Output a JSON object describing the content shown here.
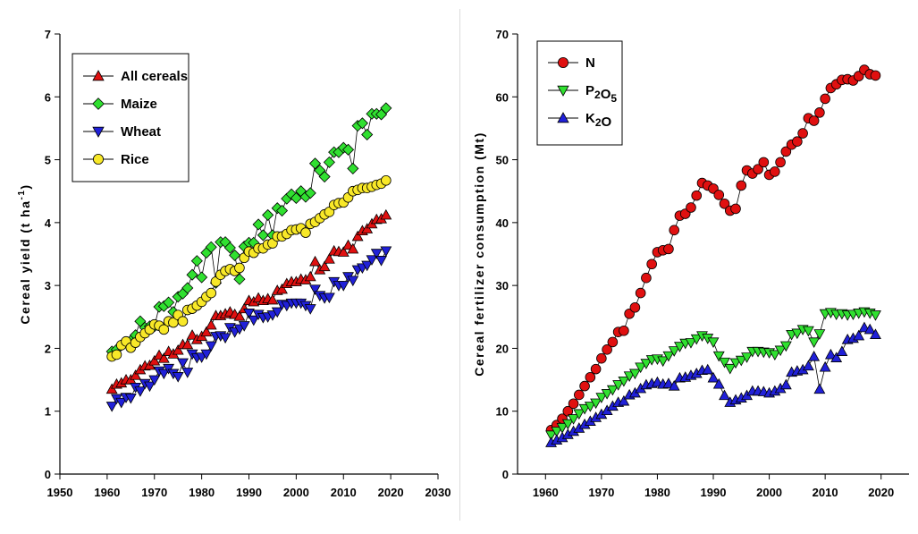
{
  "chart_data": [
    {
      "type": "line",
      "ylabel": "Cereal yield (t ha",
      "ylabel_sup": "-1",
      "ylabel_end": ")",
      "xlim": [
        1950,
        2030
      ],
      "ylim": [
        0,
        7
      ],
      "xticks": [
        1950,
        1960,
        1970,
        1980,
        1990,
        2000,
        2010,
        2020,
        2030
      ],
      "yticks": [
        0,
        1,
        2,
        3,
        4,
        5,
        6,
        7
      ],
      "grid": false,
      "legend_position": "top-left",
      "years": [
        1961,
        1962,
        1963,
        1964,
        1965,
        1966,
        1967,
        1968,
        1969,
        1970,
        1971,
        1972,
        1973,
        1974,
        1975,
        1976,
        1977,
        1978,
        1979,
        1980,
        1981,
        1982,
        1983,
        1984,
        1985,
        1986,
        1987,
        1988,
        1989,
        1990,
        1991,
        1992,
        1993,
        1994,
        1995,
        1996,
        1997,
        1998,
        1999,
        2000,
        2001,
        2002,
        2003,
        2004,
        2005,
        2006,
        2007,
        2008,
        2009,
        2010,
        2011,
        2012,
        2013,
        2014,
        2015,
        2016,
        2017,
        2018,
        2019
      ],
      "series": [
        {
          "name": "All cereals",
          "marker": "triangle-up",
          "color": "#e01010",
          "values": [
            1.35,
            1.43,
            1.45,
            1.5,
            1.5,
            1.57,
            1.66,
            1.72,
            1.73,
            1.8,
            1.89,
            1.84,
            1.95,
            1.91,
            1.97,
            2.06,
            2.06,
            2.21,
            2.14,
            2.19,
            2.26,
            2.37,
            2.52,
            2.52,
            2.55,
            2.58,
            2.54,
            2.51,
            2.63,
            2.76,
            2.74,
            2.8,
            2.76,
            2.79,
            2.77,
            2.92,
            2.94,
            3.03,
            3.06,
            3.06,
            3.1,
            3.09,
            3.14,
            3.38,
            3.25,
            3.3,
            3.42,
            3.55,
            3.54,
            3.53,
            3.64,
            3.58,
            3.78,
            3.87,
            3.9,
            3.98,
            4.05,
            4.06,
            4.12
          ]
        },
        {
          "name": "Maize",
          "marker": "diamond",
          "color": "#30e030",
          "values": [
            1.95,
            1.98,
            2.05,
            2.1,
            2.12,
            2.21,
            2.43,
            2.33,
            2.35,
            2.35,
            2.66,
            2.67,
            2.73,
            2.58,
            2.82,
            2.87,
            2.96,
            3.17,
            3.39,
            3.13,
            3.52,
            3.61,
            3.04,
            3.69,
            3.69,
            3.6,
            3.48,
            3.1,
            3.62,
            3.68,
            3.68,
            3.97,
            3.8,
            4.12,
            3.8,
            4.23,
            4.19,
            4.38,
            4.45,
            4.39,
            4.5,
            4.41,
            4.47,
            4.94,
            4.83,
            4.73,
            4.96,
            5.12,
            5.12,
            5.19,
            5.16,
            4.86,
            5.54,
            5.58,
            5.4,
            5.73,
            5.73,
            5.72,
            5.82
          ]
        },
        {
          "name": "Wheat",
          "marker": "triangle-down",
          "color": "#2020d8",
          "values": [
            1.08,
            1.2,
            1.14,
            1.22,
            1.21,
            1.38,
            1.32,
            1.44,
            1.4,
            1.5,
            1.64,
            1.6,
            1.68,
            1.6,
            1.55,
            1.77,
            1.62,
            1.91,
            1.85,
            1.86,
            1.91,
            2.04,
            2.19,
            2.2,
            2.17,
            2.33,
            2.26,
            2.31,
            2.36,
            2.56,
            2.45,
            2.54,
            2.49,
            2.5,
            2.53,
            2.58,
            2.7,
            2.68,
            2.72,
            2.72,
            2.72,
            2.68,
            2.63,
            2.94,
            2.84,
            2.8,
            2.81,
            3.06,
            3.0,
            3.0,
            3.14,
            3.08,
            3.25,
            3.28,
            3.32,
            3.41,
            3.51,
            3.4,
            3.55
          ]
        },
        {
          "name": "Rice",
          "marker": "circle",
          "color": "#f8e828",
          "values": [
            1.87,
            1.9,
            2.05,
            2.11,
            2.01,
            2.09,
            2.18,
            2.24,
            2.3,
            2.38,
            2.36,
            2.3,
            2.43,
            2.41,
            2.53,
            2.43,
            2.61,
            2.63,
            2.68,
            2.74,
            2.82,
            2.88,
            3.06,
            3.17,
            3.23,
            3.26,
            3.23,
            3.28,
            3.44,
            3.54,
            3.52,
            3.59,
            3.59,
            3.65,
            3.67,
            3.78,
            3.78,
            3.82,
            3.88,
            3.89,
            3.91,
            3.84,
            3.98,
            4.01,
            4.07,
            4.13,
            4.17,
            4.28,
            4.31,
            4.32,
            4.4,
            4.5,
            4.52,
            4.55,
            4.55,
            4.57,
            4.6,
            4.62,
            4.67
          ]
        }
      ]
    },
    {
      "type": "line",
      "ylabel": "Cereal fertilizer consumption (Mt)",
      "xlim": [
        1955,
        2025
      ],
      "ylim": [
        0,
        70
      ],
      "xticks": [
        1960,
        1970,
        1980,
        1990,
        2000,
        2010,
        2020
      ],
      "yticks": [
        0,
        10,
        20,
        30,
        40,
        50,
        60,
        70
      ],
      "grid": false,
      "legend_position": "top-left",
      "years": [
        1961,
        1962,
        1963,
        1964,
        1965,
        1966,
        1967,
        1968,
        1969,
        1970,
        1971,
        1972,
        1973,
        1974,
        1975,
        1976,
        1977,
        1978,
        1979,
        1980,
        1981,
        1982,
        1983,
        1984,
        1985,
        1986,
        1987,
        1988,
        1989,
        1990,
        1991,
        1992,
        1993,
        1994,
        1995,
        1996,
        1997,
        1998,
        1999,
        2000,
        2001,
        2002,
        2003,
        2004,
        2005,
        2006,
        2007,
        2008,
        2009,
        2010,
        2011,
        2012,
        2013,
        2014,
        2015,
        2016,
        2017,
        2018,
        2019
      ],
      "series": [
        {
          "name": "N",
          "marker": "circle",
          "color": "#e01010",
          "values": [
            7.0,
            7.8,
            8.8,
            10.0,
            11.2,
            12.6,
            14.0,
            15.4,
            16.7,
            18.4,
            19.8,
            21.0,
            22.6,
            22.8,
            25.5,
            26.5,
            28.8,
            31.2,
            33.4,
            35.3,
            35.6,
            35.8,
            38.8,
            41.1,
            41.4,
            42.4,
            44.3,
            46.3,
            45.9,
            45.4,
            44.4,
            43.0,
            41.9,
            42.2,
            45.9,
            48.3,
            47.8,
            48.5,
            49.6,
            47.6,
            48.1,
            49.6,
            51.3,
            52.4,
            52.9,
            54.2,
            56.6,
            56.2,
            57.5,
            59.7,
            61.4,
            62.0,
            62.7,
            62.8,
            62.6,
            63.3,
            64.3,
            63.6,
            63.4
          ]
        },
        {
          "name": "P2O5",
          "marker": "triangle-down",
          "color": "#30e030",
          "values": [
            6.2,
            6.8,
            7.4,
            8.0,
            8.8,
            9.6,
            10.4,
            10.8,
            11.3,
            12.2,
            12.8,
            13.4,
            14.2,
            14.8,
            15.6,
            16.0,
            17.0,
            17.6,
            18.2,
            18.3,
            18.0,
            18.8,
            19.6,
            20.3,
            20.8,
            20.9,
            21.5,
            22.0,
            21.6,
            21.0,
            18.8,
            17.8,
            16.8,
            17.7,
            18.1,
            18.6,
            19.5,
            19.5,
            19.4,
            19.3,
            19.0,
            19.7,
            20.4,
            22.2,
            22.4,
            23.0,
            22.8,
            21.0,
            22.3,
            25.5,
            25.7,
            25.4,
            25.5,
            25.3,
            25.4,
            25.6,
            25.8,
            25.6,
            25.3
          ]
        },
        {
          "name": "K2O",
          "marker": "triangle-up",
          "color": "#2020d8",
          "values": [
            5.0,
            5.4,
            5.8,
            6.3,
            6.8,
            7.3,
            7.9,
            8.4,
            9.0,
            9.5,
            10.1,
            10.8,
            11.4,
            11.6,
            12.6,
            12.9,
            13.6,
            14.2,
            14.4,
            14.6,
            14.3,
            14.4,
            14.0,
            15.3,
            15.4,
            15.7,
            16.0,
            16.5,
            16.6,
            15.3,
            14.3,
            12.5,
            11.4,
            11.8,
            12.1,
            12.5,
            13.2,
            13.2,
            13.1,
            12.9,
            13.2,
            13.6,
            14.2,
            16.2,
            16.4,
            16.6,
            17.2,
            18.7,
            13.5,
            17.0,
            19.0,
            18.5,
            19.5,
            21.4,
            21.6,
            22.0,
            23.3,
            23.0,
            22.2
          ]
        }
      ]
    }
  ]
}
